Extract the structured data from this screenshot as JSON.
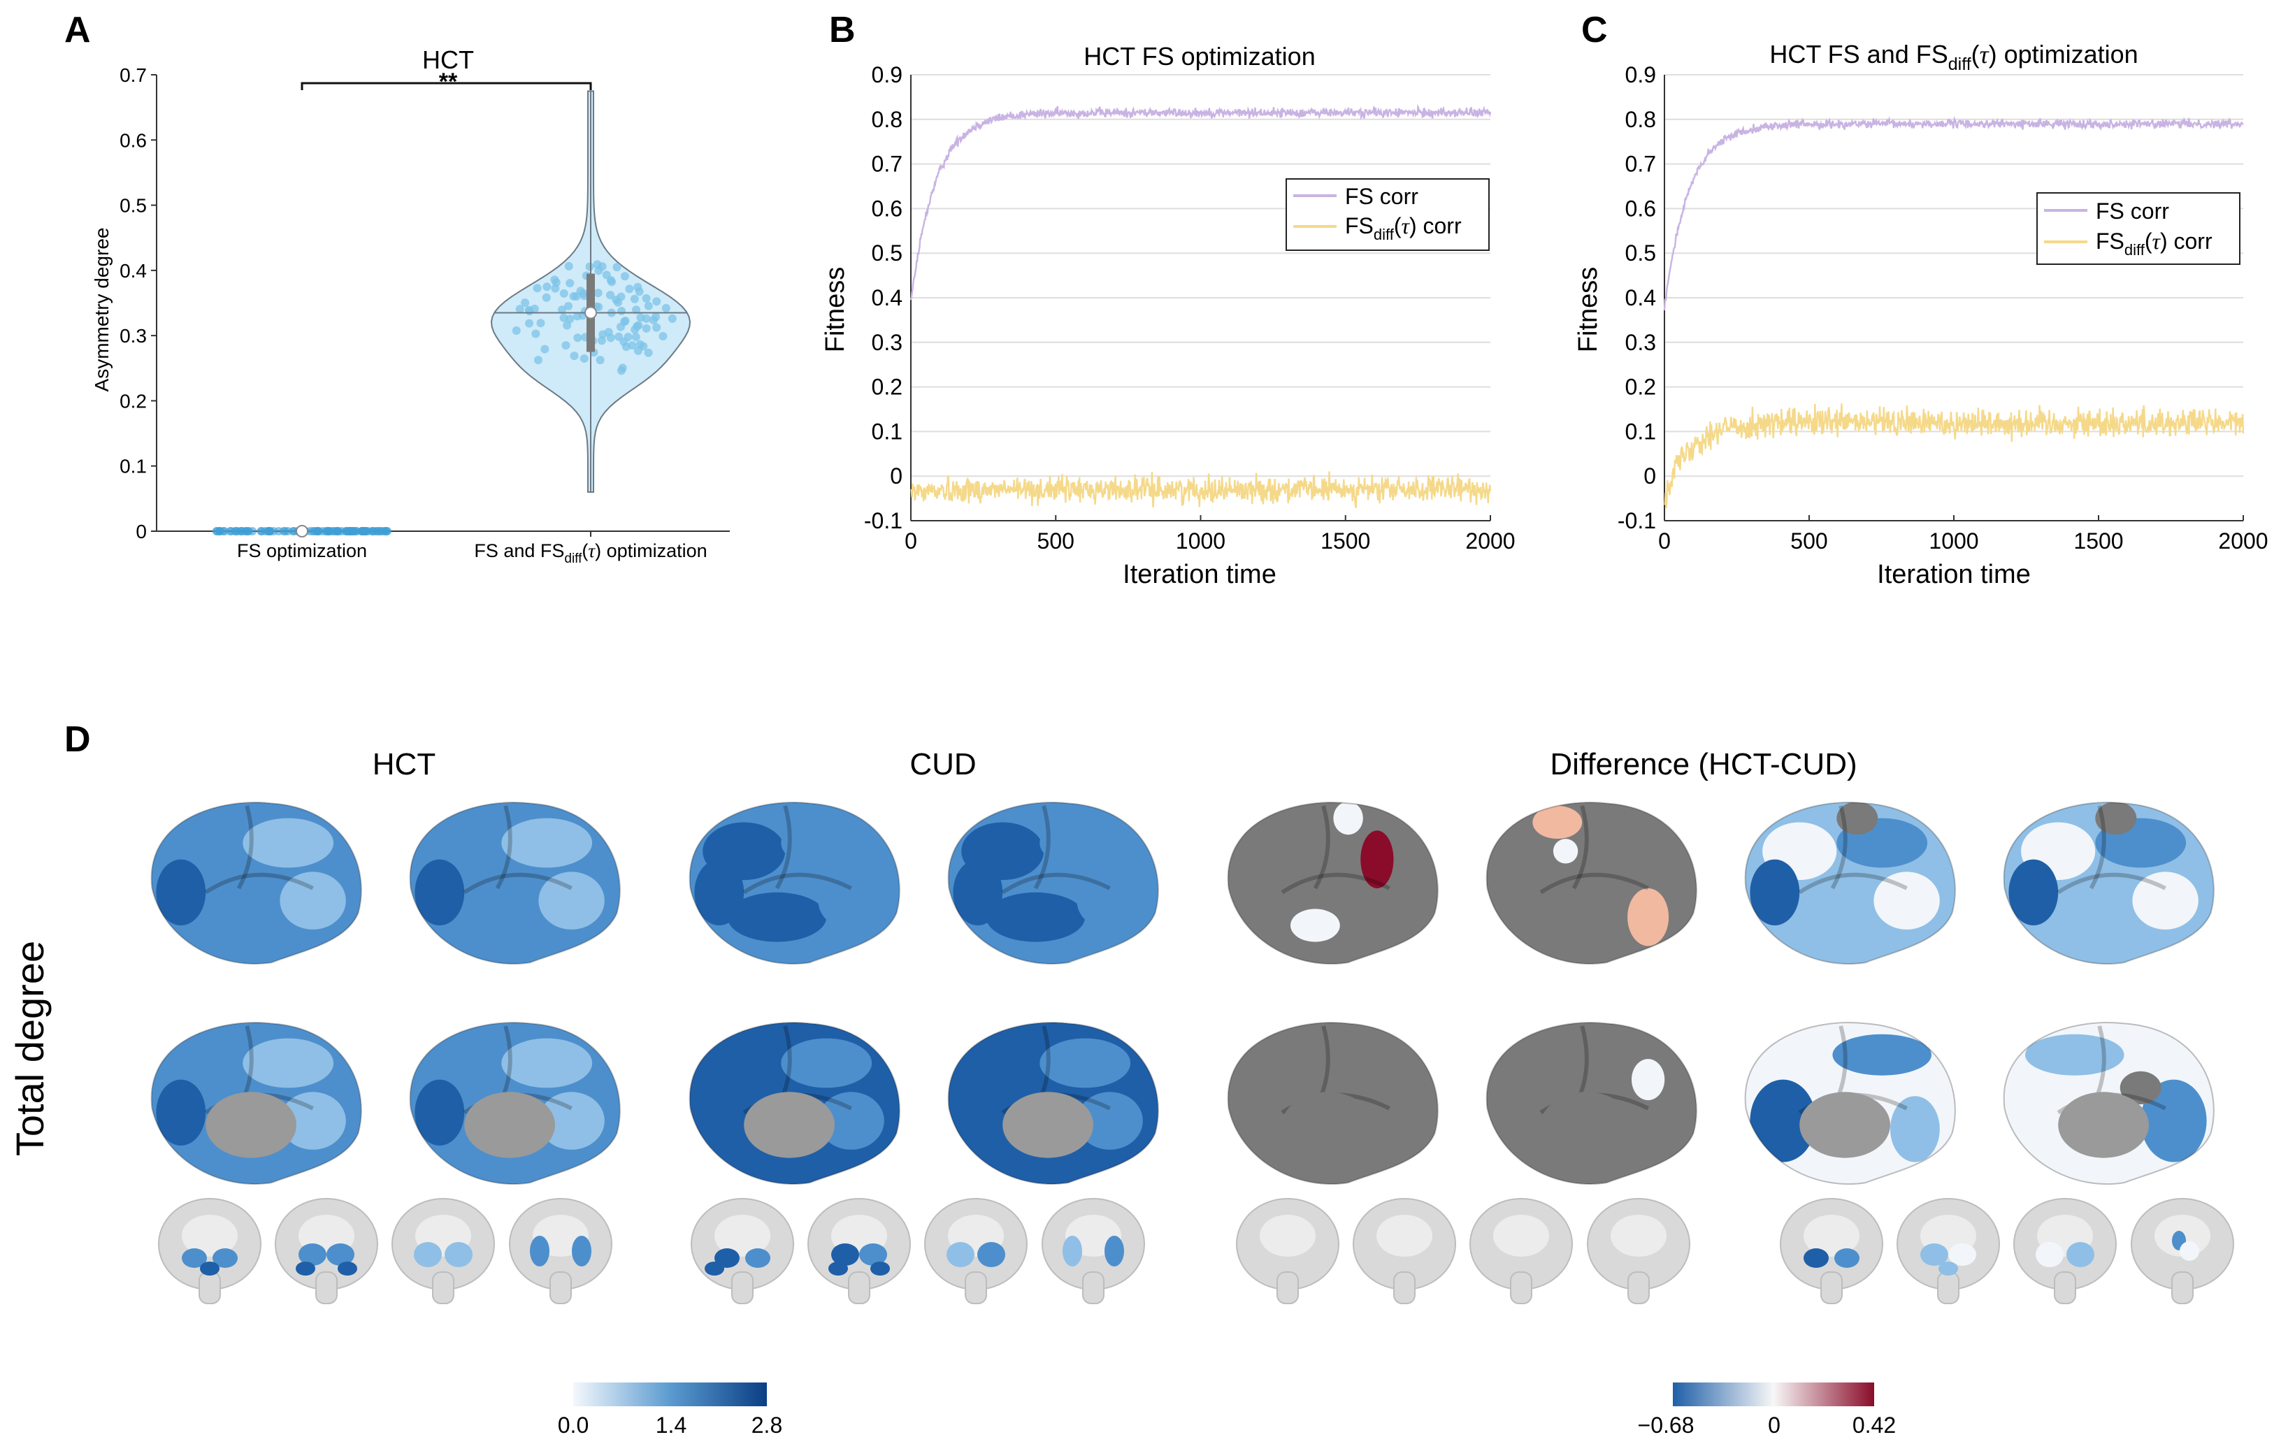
{
  "panel_labels": {
    "a": "A",
    "b": "B",
    "c": "C",
    "d": "D"
  },
  "chart_data": [
    {
      "type": "violin",
      "panel": "A",
      "title": "HCT",
      "ylabel": "Asymmetry degree",
      "ylim": [
        0,
        0.7
      ],
      "yticks": [
        "0",
        "0.1",
        "0.2",
        "0.3",
        "0.4",
        "0.5",
        "0.6",
        "0.7"
      ],
      "categories": [
        "FS optimization",
        "FS and FS_diff(τ) optimization"
      ],
      "cat2_parts": {
        "pre": "FS and FS",
        "sub": "diff",
        "mid": "(",
        "tau": "τ",
        "post": ") optimization"
      },
      "groups": [
        {
          "name": "FS optimization",
          "median": 0.0,
          "min": 0.0,
          "max": 0.0
        },
        {
          "name": "FS and FS_diff(τ) optimization",
          "median": 0.335,
          "q1": 0.275,
          "q3": 0.395,
          "min": 0.06,
          "max": 0.675
        }
      ],
      "significance": "**",
      "colors": {
        "violin_fill": "#cfeaf8",
        "violin_edge": "#6b7a85",
        "point": "#7cc3e8",
        "point_dark": "#3f9fd6"
      }
    },
    {
      "type": "line",
      "panel": "B",
      "title": "HCT FS optimization",
      "xlabel": "Iteration time",
      "ylabel": "Fitness",
      "xlim": [
        0,
        2000
      ],
      "ylim": [
        -0.1,
        0.9
      ],
      "xticks": [
        "0",
        "500",
        "1000",
        "1500",
        "2000"
      ],
      "yticks": [
        "-0.1",
        "0",
        "0.1",
        "0.2",
        "0.3",
        "0.4",
        "0.5",
        "0.6",
        "0.7",
        "0.8",
        "0.9"
      ],
      "series": [
        {
          "name": "FS corr",
          "start": 0.39,
          "plateau": 0.815,
          "noise": 0.01,
          "color": "#c9b3e3"
        },
        {
          "name": "FS_diff(τ) corr",
          "start": -0.035,
          "plateau": -0.03,
          "noise": 0.028,
          "color": "#f5d98a"
        }
      ],
      "legend": {
        "entry1": "FS corr",
        "entry2_pre": "FS",
        "entry2_sub": "diff",
        "entry2_tau": "τ",
        "entry2_post": "corr"
      }
    },
    {
      "type": "line",
      "panel": "C",
      "title_pre": "HCT FS and FS",
      "title_sub": "diff",
      "title_tau": "τ",
      "title_post": "optimization",
      "xlabel": "Iteration time",
      "ylabel": "Fitness",
      "xlim": [
        0,
        2000
      ],
      "ylim": [
        -0.1,
        0.9
      ],
      "xticks": [
        "0",
        "500",
        "1000",
        "1500",
        "2000"
      ],
      "yticks": [
        "-0.1",
        "0",
        "0.1",
        "0.2",
        "0.3",
        "0.4",
        "0.5",
        "0.6",
        "0.7",
        "0.8",
        "0.9"
      ],
      "series": [
        {
          "name": "FS corr",
          "start": 0.38,
          "plateau": 0.79,
          "noise": 0.009,
          "color": "#c9b3e3"
        },
        {
          "name": "FS_diff(τ) corr",
          "start": -0.04,
          "plateau": 0.12,
          "noise": 0.032,
          "color": "#f5d98a"
        }
      ],
      "legend": {
        "entry1": "FS corr",
        "entry2_pre": "FS",
        "entry2_sub": "diff",
        "entry2_tau": "τ",
        "entry2_post": "corr"
      }
    }
  ],
  "panel_d": {
    "row_label": "Total degree",
    "group_titles": {
      "hct": "HCT",
      "cud": "CUD",
      "diff": "Difference (HCT-CUD)"
    },
    "colorbar_blue": {
      "ticks": [
        "0.0",
        "1.4",
        "2.8"
      ],
      "min": 0,
      "max": 2.8,
      "colors": [
        "#f4f8fc",
        "#5b9bd0",
        "#0b3f85"
      ]
    },
    "colorbar_div": {
      "ticks": [
        "−0.68",
        "0",
        "0.42"
      ],
      "min": -0.68,
      "max": 0.42,
      "colors": [
        "#1f5fa8",
        "#f7f7f7",
        "#8a0c2a"
      ]
    },
    "brain_colors": {
      "blue_light": "#8fbfe6",
      "blue_mid": "#4d8fcc",
      "blue_dark": "#1f5fa8",
      "gray": "#7a7a7a",
      "gray_light": "#d9d9d9",
      "white": "#f2f6fa",
      "red": "#8a0c2a",
      "pink": "#f1b9a0"
    }
  }
}
